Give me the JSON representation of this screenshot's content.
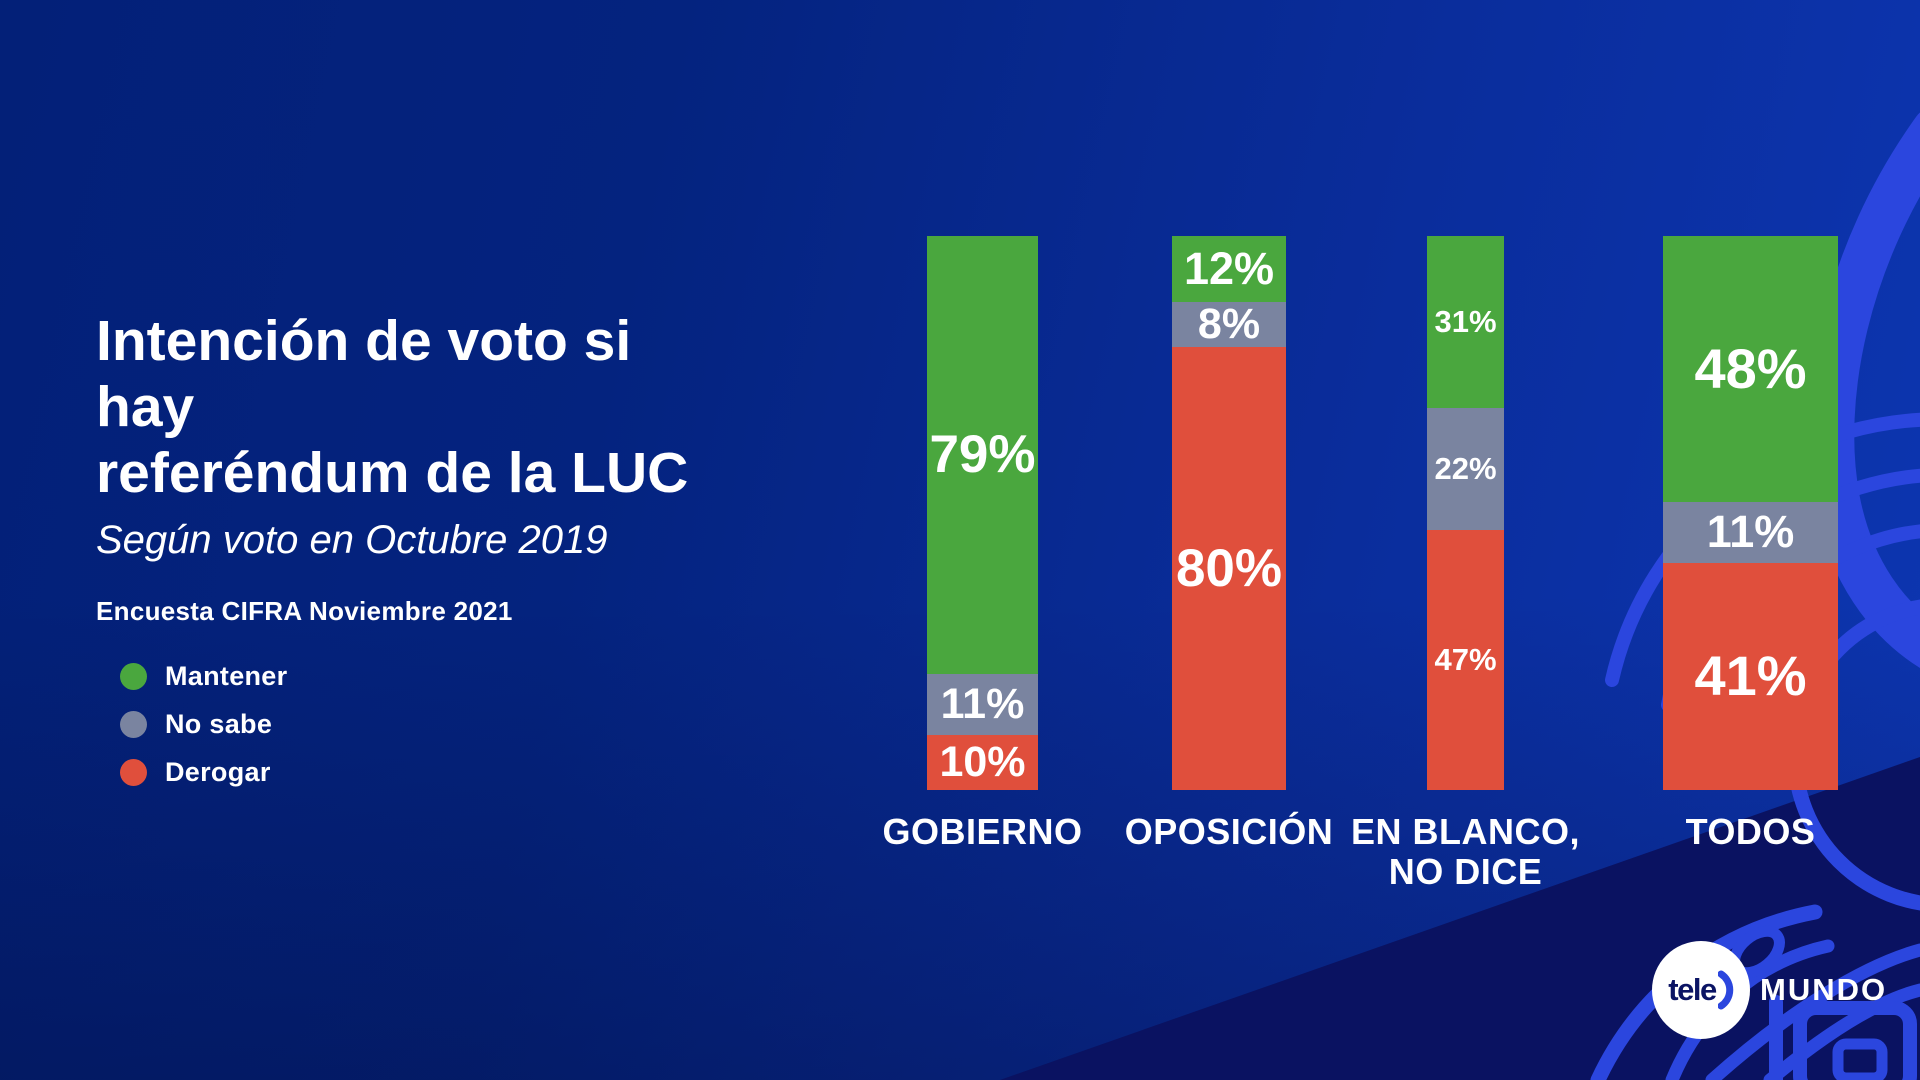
{
  "title": {
    "line1": "Intención de voto si hay",
    "line2": "referéndum de la LUC"
  },
  "subtitle": "Según voto en Octubre 2019",
  "source": "Encuesta CIFRA Noviembre 2021",
  "legend": [
    {
      "label": "Mantener",
      "color": "#4aa73e"
    },
    {
      "label": "No sabe",
      "color": "#7a84a0"
    },
    {
      "label": "Derogar",
      "color": "#e04f3c"
    }
  ],
  "chart_data": {
    "type": "bar",
    "stacked": true,
    "unit": "%",
    "orientation": "vertical",
    "categories": [
      "GOBIERNO",
      "OPOSICIÓN",
      "EN BLANCO, NO DICE",
      "TODOS"
    ],
    "series": [
      {
        "name": "Mantener",
        "color": "#4aa73e",
        "values": [
          79,
          12,
          31,
          48
        ]
      },
      {
        "name": "No sabe",
        "color": "#7a84a0",
        "values": [
          11,
          8,
          22,
          11
        ]
      },
      {
        "name": "Derogar",
        "color": "#e04f3c",
        "values": [
          10,
          80,
          47,
          41
        ]
      }
    ],
    "value_labels": "inside-segments",
    "ylim": [
      0,
      100
    ],
    "grid": false,
    "legend_position": "left"
  },
  "logo": {
    "circle_text": "tele",
    "wordmark": "MUNDO"
  },
  "colors": {
    "background_start": "#032078",
    "background_end": "#0d36b2",
    "dark_corner": "#0a1261",
    "decor_outline": "#2b46de",
    "text": "#ffffff",
    "logo_navy": "#0b1464"
  }
}
